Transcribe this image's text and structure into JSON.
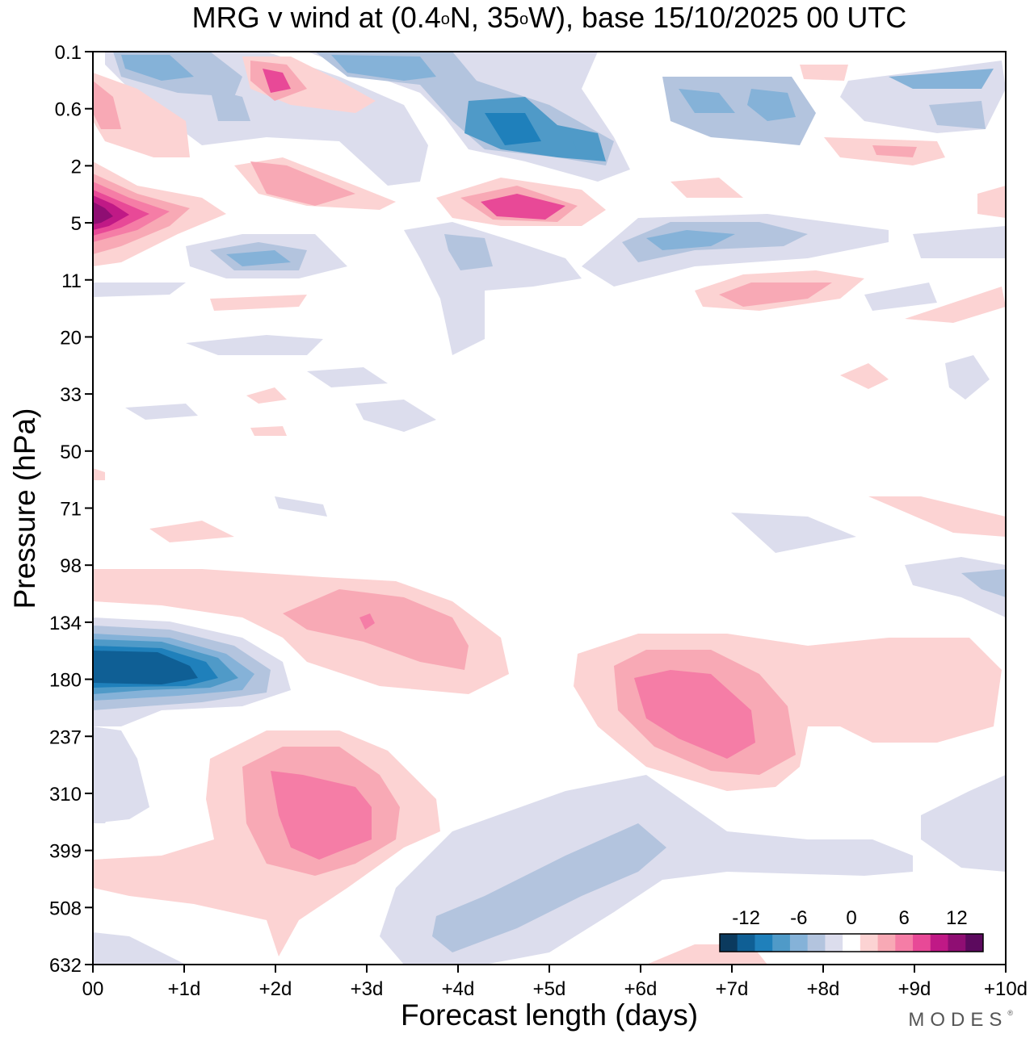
{
  "chart_data": {
    "type": "heatmap",
    "title_parts": {
      "prefix": "MRG v wind at (0.4",
      "deg1": "o",
      "mid": "N, 35",
      "deg2": "o",
      "suffix": "W),  base 15/10/2025  00 UTC"
    },
    "xlabel": "Forecast length (days)",
    "ylabel": "Pressure (hPa)",
    "x_ticks": [
      "00",
      "+1d",
      "+2d",
      "+3d",
      "+4d",
      "+5d",
      "+6d",
      "+7d",
      "+8d",
      "+9d",
      "+10d"
    ],
    "xlim": [
      0,
      10
    ],
    "y_ticks": [
      "0.1",
      "0.6",
      "2",
      "5",
      "11",
      "20",
      "33",
      "50",
      "71",
      "98",
      "134",
      "180",
      "237",
      "310",
      "399",
      "508",
      "632"
    ],
    "y_scale": "log-pressure, top to bottom",
    "colorbar": {
      "tick_labels": [
        "-12",
        "-6",
        "0",
        "6",
        "12"
      ],
      "colors": [
        "#0b3a5e",
        "#0f5f95",
        "#1f80bb",
        "#4f9ac8",
        "#85b2d8",
        "#b3c4de",
        "#dcdded",
        "#ffffff",
        "#fcd3d3",
        "#f8a9b5",
        "#f57da6",
        "#e84997",
        "#c01986",
        "#8f0e73",
        "#5c0a5e"
      ],
      "step": 2,
      "range": [
        -15,
        15
      ]
    },
    "features": [
      {
        "sign": "negative",
        "peak": -14,
        "day": 0.7,
        "pressure_hpa": 180,
        "label": "strong northerly core"
      },
      {
        "sign": "positive",
        "peak": 12,
        "day": 0.1,
        "pressure_hpa": 5,
        "label": "strong southerly core"
      },
      {
        "sign": "positive",
        "peak": 8,
        "day": 2.6,
        "pressure_hpa": 330,
        "label": "southerly lobe"
      },
      {
        "sign": "positive",
        "peak": 7,
        "day": 6.7,
        "pressure_hpa": 210,
        "label": "southerly lobe"
      },
      {
        "sign": "positive",
        "peak": 6,
        "day": 3.4,
        "pressure_hpa": 140,
        "label": "southerly lobe"
      },
      {
        "sign": "positive",
        "peak": 8,
        "day": 4.8,
        "pressure_hpa": 4,
        "label": "southerly lobe"
      },
      {
        "sign": "negative",
        "peak": -10,
        "day": 4.6,
        "pressure_hpa": 1.0,
        "label": "northerly lobe"
      },
      {
        "sign": "negative",
        "peak": -7,
        "day": 6.4,
        "pressure_hpa": 7,
        "label": "northerly lobe"
      },
      {
        "sign": "negative",
        "peak": -5,
        "day": 5.6,
        "pressure_hpa": 430,
        "label": "northerly lobe"
      }
    ]
  },
  "brand": {
    "text": "MODES",
    "mark": "®"
  }
}
